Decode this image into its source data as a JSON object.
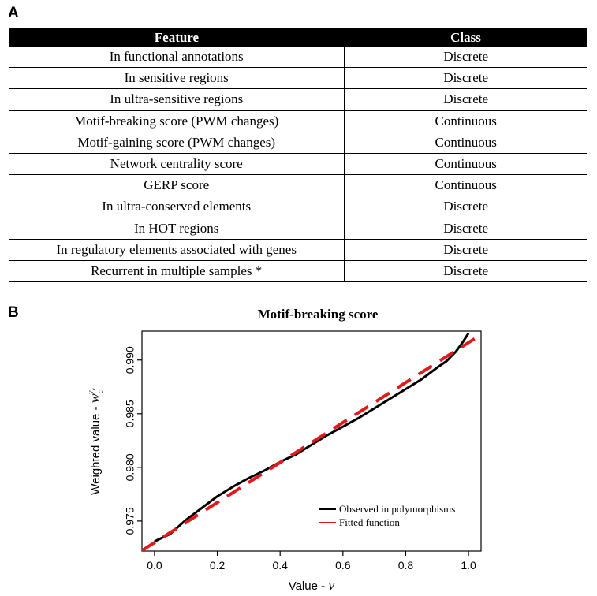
{
  "panel_a": {
    "label": "A",
    "header": {
      "feature": "Feature",
      "class": "Class"
    },
    "rows": [
      {
        "feature": "In functional annotations",
        "class": "Discrete"
      },
      {
        "feature": "In sensitive regions",
        "class": "Discrete"
      },
      {
        "feature": "In ultra-sensitive regions",
        "class": "Discrete"
      },
      {
        "feature": "Motif-breaking score (PWM changes)",
        "class": "Continuous"
      },
      {
        "feature": "Motif-gaining score (PWM changes)",
        "class": "Continuous"
      },
      {
        "feature": "Network centrality score",
        "class": "Continuous"
      },
      {
        "feature": "GERP score",
        "class": "Continuous"
      },
      {
        "feature": "In ultra-conserved elements",
        "class": "Discrete"
      },
      {
        "feature": "In HOT regions",
        "class": "Discrete"
      },
      {
        "feature": "In regulatory elements associated with genes",
        "class": "Discrete"
      },
      {
        "feature": "Recurrent in multiple samples *",
        "class": "Discrete"
      }
    ]
  },
  "panel_b": {
    "label": "B"
  },
  "chart_data": {
    "type": "line",
    "title": "Motif-breaking score",
    "xlabel_prefix": "Value - ",
    "xlabel_symbol": "v",
    "ylabel_prefix": "Weighted value - ",
    "ylabel_symbol": "w",
    "ylabel_sub": "c",
    "ylabel_sup": "v",
    "ylabel_supsub": "c",
    "xlim": [
      -0.04,
      1.04
    ],
    "ylim": [
      0.9722,
      0.9927
    ],
    "xticks": [
      "0.0",
      "0.2",
      "0.4",
      "0.6",
      "0.8",
      "1.0"
    ],
    "xtick_values": [
      0.0,
      0.2,
      0.4,
      0.6,
      0.8,
      1.0
    ],
    "yticks": [
      "0.975",
      "0.980",
      "0.985",
      "0.990"
    ],
    "ytick_values": [
      0.975,
      0.98,
      0.985,
      0.99
    ],
    "legend_position": "bottom-right",
    "series": [
      {
        "name": "Observed in polymorphisms",
        "color": "#000000",
        "style": "solid",
        "x": [
          0.0,
          0.05,
          0.1,
          0.15,
          0.2,
          0.25,
          0.3,
          0.35,
          0.4,
          0.45,
          0.5,
          0.55,
          0.6,
          0.65,
          0.7,
          0.75,
          0.8,
          0.85,
          0.9,
          0.93,
          0.96,
          0.98,
          1.0
        ],
        "y": [
          0.9731,
          0.9738,
          0.9751,
          0.9762,
          0.9773,
          0.9782,
          0.979,
          0.9797,
          0.9805,
          0.9812,
          0.9821,
          0.983,
          0.9838,
          0.9846,
          0.9855,
          0.9864,
          0.9873,
          0.9882,
          0.9893,
          0.9899,
          0.9908,
          0.9916,
          0.9925
        ]
      },
      {
        "name": "Fitted function",
        "color": "#e31a1c",
        "style": "dashed",
        "x": [
          -0.04,
          1.04
        ],
        "y": [
          0.97225,
          0.99238
        ]
      }
    ]
  }
}
